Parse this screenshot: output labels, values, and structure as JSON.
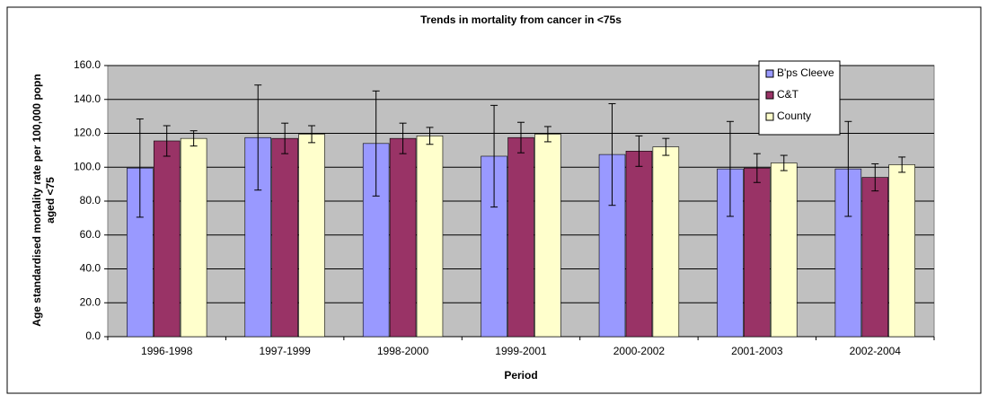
{
  "chart_data": {
    "type": "bar",
    "title": "Trends in mortality from cancer in <75s",
    "x_label": "Period",
    "y_label": "Age standardised mortality rate per 100,000 popn aged <75",
    "categories": [
      "1996-1998",
      "1997-1999",
      "1998-2000",
      "1999-2001",
      "2000-2002",
      "2001-2003",
      "2002-2004"
    ],
    "series": [
      {
        "name": "B'ps Cleeve",
        "color": "#9999ff",
        "values": [
          99.5,
          117.5,
          114,
          106.5,
          107.5,
          99,
          99
        ],
        "errors": [
          29,
          31,
          31,
          30,
          30,
          28,
          28
        ]
      },
      {
        "name": "C&T",
        "color": "#993366",
        "values": [
          115.5,
          117,
          117,
          117.5,
          109.5,
          99.5,
          94
        ],
        "errors": [
          9,
          9,
          9,
          9,
          9,
          8.5,
          8
        ]
      },
      {
        "name": "County",
        "color": "#ffffcc",
        "values": [
          117,
          119.5,
          118.5,
          119.5,
          112,
          102.5,
          101.5
        ],
        "errors": [
          4.5,
          5,
          5,
          4.5,
          5,
          4.5,
          4.5
        ]
      }
    ],
    "ylim": [
      0,
      160
    ],
    "yticks": [
      {
        "value": 0,
        "label": "0.0"
      },
      {
        "value": 20,
        "label": "20.0"
      },
      {
        "value": 40,
        "label": "40.0"
      },
      {
        "value": 60,
        "label": "60.0"
      },
      {
        "value": 80,
        "label": "80.0"
      },
      {
        "value": 100,
        "label": "100.0"
      },
      {
        "value": 120,
        "label": "120.0"
      },
      {
        "value": 140,
        "label": "140.0"
      },
      {
        "value": 160,
        "label": "160.0"
      }
    ],
    "grid": true,
    "plot_background": "#c0c0c0",
    "legend": "upper right"
  }
}
